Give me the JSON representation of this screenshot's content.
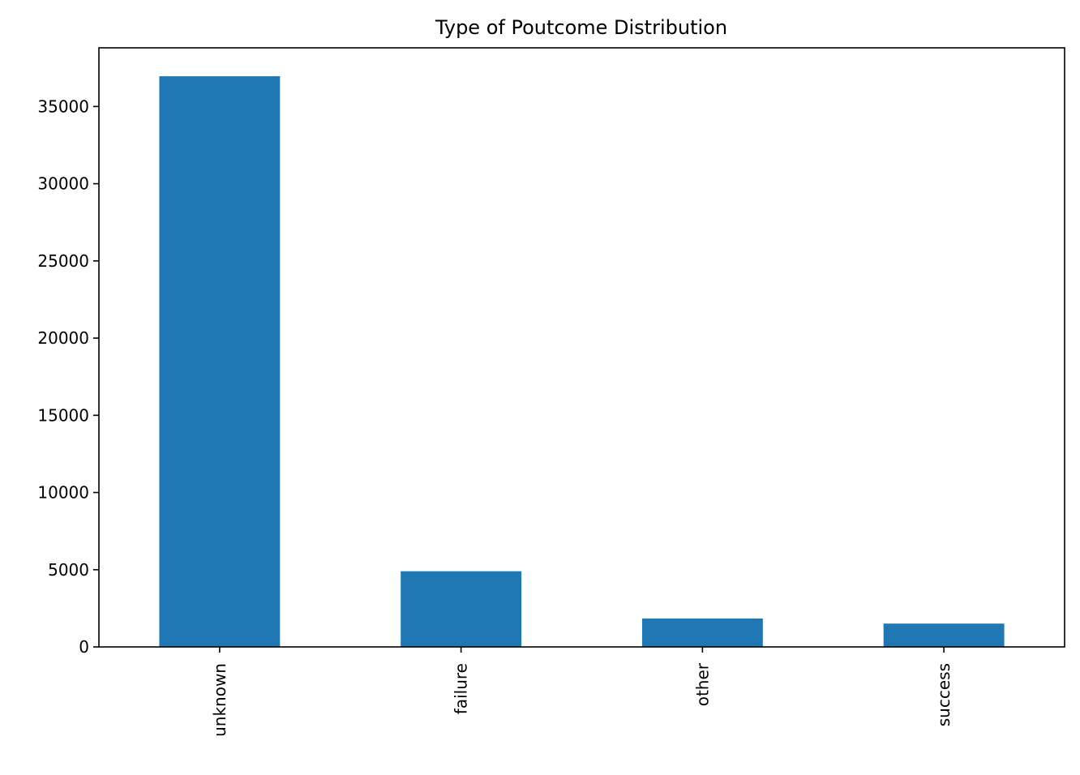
{
  "chart_data": {
    "type": "bar",
    "title": "Type of Poutcome Distribution",
    "xlabel": "",
    "ylabel": "",
    "categories": [
      "unknown",
      "failure",
      "other",
      "success"
    ],
    "values": [
      36959,
      4901,
      1840,
      1511
    ],
    "ylim": [
      0,
      38800
    ],
    "yticks": [
      0,
      5000,
      10000,
      15000,
      20000,
      25000,
      30000,
      35000
    ],
    "ytick_labels": [
      "0",
      "5000",
      "10000",
      "15000",
      "20000",
      "25000",
      "30000",
      "35000"
    ],
    "bar_color": "#1f77b4",
    "grid": false,
    "legend": false
  }
}
